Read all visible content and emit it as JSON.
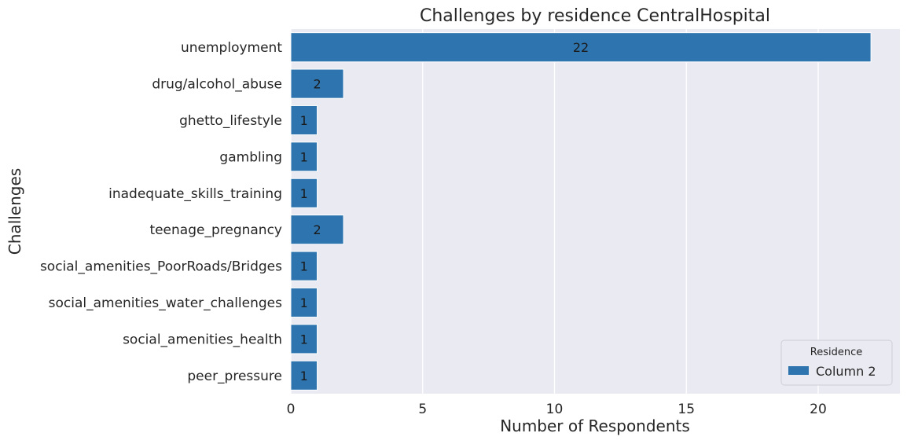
{
  "chart_data": {
    "type": "bar",
    "orientation": "horizontal",
    "title": "Challenges by residence CentralHospital",
    "xlabel": "Number of Respondents",
    "ylabel": "Challenges",
    "categories": [
      "unemployment",
      "drug/alcohol_abuse",
      "ghetto_lifestyle",
      "gambling",
      "inadequate_skills_training",
      "teenage_pregnancy",
      "social_amenities_PoorRoads/Bridges",
      "social_amenities_water_challenges",
      "social_amenities_health",
      "peer_pressure"
    ],
    "series": [
      {
        "name": "Column 2",
        "values": [
          22,
          2,
          1,
          1,
          1,
          2,
          1,
          1,
          1,
          1
        ]
      }
    ],
    "xlim": [
      0,
      23.1
    ],
    "xticks": [
      0,
      5,
      10,
      15,
      20
    ],
    "grid": true,
    "bar_color": "#2e75b0",
    "background_color": "#eaeaf2",
    "legend": {
      "title": "Residence",
      "placement": "lower-right"
    }
  }
}
